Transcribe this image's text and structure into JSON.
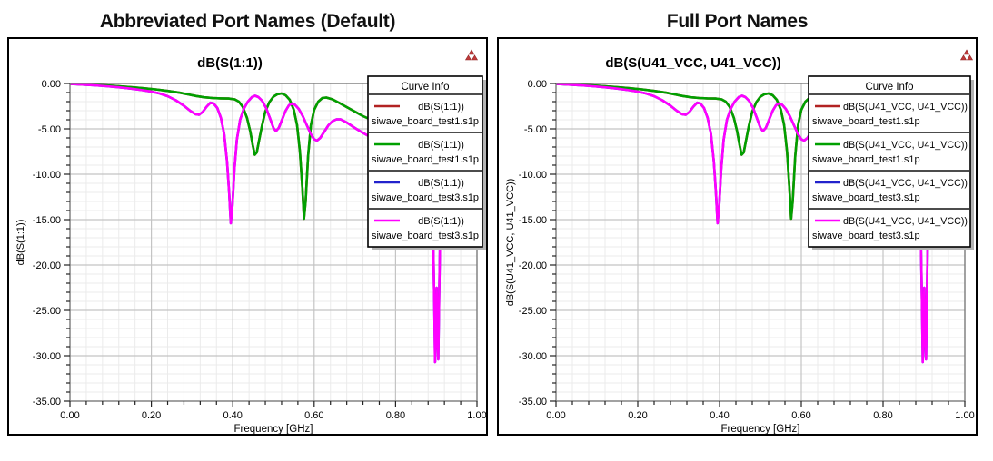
{
  "panels": [
    {
      "heading": "Abbreviated Port Names (Default)",
      "chart_title": "dB(S(1:1))",
      "ylabel": "dB(S(1:1))",
      "xlabel": "Frequency [GHz]",
      "corner_icon": "red-delta-marker-icon",
      "legend": {
        "header": "Curve Info",
        "entries": [
          {
            "color": "#b22222",
            "label": "dB(S(1:1))",
            "file": "siwave_board_test1.s1p"
          },
          {
            "color": "#00a000",
            "label": "dB(S(1:1))",
            "file": "siwave_board_test1.s1p"
          },
          {
            "color": "#2222cc",
            "label": "dB(S(1:1))",
            "file": "siwave_board_test3.s1p"
          },
          {
            "color": "#ff00ff",
            "label": "dB(S(1:1))",
            "file": "siwave_board_test3.s1p"
          }
        ]
      }
    },
    {
      "heading": "Full Port Names",
      "chart_title": "dB(S(U41_VCC, U41_VCC))",
      "ylabel": "dB(S(U41_VCC, U41_VCC))",
      "xlabel": "Frequency [GHz]",
      "corner_icon": "red-delta-marker-icon",
      "legend": {
        "header": "Curve Info",
        "entries": [
          {
            "color": "#b22222",
            "label": "dB(S(U41_VCC, U41_VCC))",
            "file": "siwave_board_test1.s1p"
          },
          {
            "color": "#00a000",
            "label": "dB(S(U41_VCC, U41_VCC))",
            "file": "siwave_board_test1.s1p"
          },
          {
            "color": "#2222cc",
            "label": "dB(S(U41_VCC, U41_VCC))",
            "file": "siwave_board_test3.s1p"
          },
          {
            "color": "#ff00ff",
            "label": "dB(S(U41_VCC, U41_VCC))",
            "file": "siwave_board_test3.s1p"
          }
        ]
      }
    }
  ],
  "chart_data": {
    "type": "line",
    "xlabel": "Frequency [GHz]",
    "xlim": [
      0,
      1
    ],
    "ylim": [
      -35,
      0
    ],
    "grid": "on",
    "legend_position": "top-right-overlay",
    "x_ticks": {
      "major": [
        0,
        0.2,
        0.4,
        0.6,
        0.8,
        1.0
      ],
      "labels": [
        "0.00",
        "0.20",
        "0.40",
        "0.60",
        "0.80",
        "1.00"
      ],
      "minor_step": 0.04
    },
    "y_ticks": {
      "major": [
        0,
        -5,
        -10,
        -15,
        -20,
        -25,
        -30,
        -35
      ],
      "labels": [
        "0.00",
        "-5.00",
        "-10.00",
        "-15.00",
        "-20.00",
        "-25.00",
        "-30.00",
        "-35.00"
      ],
      "minor_step": 1
    },
    "note": "Red curve coincides with green (test1); blue coincides with magenta (test3); they are hidden underneath.",
    "series": [
      {
        "name": "siwave_board_test1.s1p (red, hidden under green)",
        "color": "#b22222",
        "points_same_as": 1
      },
      {
        "name": "siwave_board_test1.s1p (green)",
        "color": "#00a000",
        "points": [
          [
            0,
            -0.05
          ],
          [
            0.03,
            -0.1
          ],
          [
            0.06,
            -0.15
          ],
          [
            0.09,
            -0.22
          ],
          [
            0.12,
            -0.3
          ],
          [
            0.15,
            -0.4
          ],
          [
            0.18,
            -0.52
          ],
          [
            0.21,
            -0.65
          ],
          [
            0.24,
            -0.82
          ],
          [
            0.27,
            -1.02
          ],
          [
            0.29,
            -1.2
          ],
          [
            0.31,
            -1.38
          ],
          [
            0.33,
            -1.52
          ],
          [
            0.35,
            -1.6
          ],
          [
            0.37,
            -1.64
          ],
          [
            0.39,
            -1.66
          ],
          [
            0.405,
            -1.75
          ],
          [
            0.415,
            -2.0
          ],
          [
            0.425,
            -2.6
          ],
          [
            0.435,
            -3.8
          ],
          [
            0.443,
            -5.3
          ],
          [
            0.449,
            -6.8
          ],
          [
            0.454,
            -7.85
          ],
          [
            0.459,
            -7.6
          ],
          [
            0.465,
            -6.2
          ],
          [
            0.472,
            -4.6
          ],
          [
            0.48,
            -3.1
          ],
          [
            0.49,
            -2.05
          ],
          [
            0.5,
            -1.45
          ],
          [
            0.51,
            -1.18
          ],
          [
            0.52,
            -1.1
          ],
          [
            0.53,
            -1.3
          ],
          [
            0.54,
            -1.8
          ],
          [
            0.55,
            -2.9
          ],
          [
            0.558,
            -4.6
          ],
          [
            0.565,
            -7.5
          ],
          [
            0.571,
            -11.5
          ],
          [
            0.575,
            -14.9
          ],
          [
            0.579,
            -13.0
          ],
          [
            0.585,
            -8.0
          ],
          [
            0.592,
            -4.6
          ],
          [
            0.6,
            -2.9
          ],
          [
            0.61,
            -2.0
          ],
          [
            0.62,
            -1.6
          ],
          [
            0.63,
            -1.55
          ],
          [
            0.645,
            -1.75
          ],
          [
            0.66,
            -2.1
          ],
          [
            0.68,
            -2.6
          ],
          [
            0.7,
            -3.1
          ],
          [
            0.72,
            -3.6
          ],
          [
            0.75,
            -4.2
          ],
          [
            0.8,
            -5.0
          ],
          [
            0.85,
            -5.6
          ],
          [
            0.9,
            -5.9
          ],
          [
            0.95,
            -6.1
          ],
          [
            1.0,
            -6.3
          ]
        ]
      },
      {
        "name": "siwave_board_test3.s1p (blue, hidden under magenta)",
        "color": "#2222cc",
        "points_same_as": 3
      },
      {
        "name": "siwave_board_test3.s1p (magenta)",
        "color": "#ff00ff",
        "points": [
          [
            0,
            -0.05
          ],
          [
            0.03,
            -0.12
          ],
          [
            0.06,
            -0.2
          ],
          [
            0.09,
            -0.3
          ],
          [
            0.12,
            -0.42
          ],
          [
            0.15,
            -0.57
          ],
          [
            0.18,
            -0.75
          ],
          [
            0.2,
            -0.9
          ],
          [
            0.22,
            -1.1
          ],
          [
            0.24,
            -1.4
          ],
          [
            0.26,
            -1.85
          ],
          [
            0.28,
            -2.45
          ],
          [
            0.295,
            -3.0
          ],
          [
            0.308,
            -3.38
          ],
          [
            0.317,
            -3.45
          ],
          [
            0.326,
            -3.15
          ],
          [
            0.336,
            -2.55
          ],
          [
            0.345,
            -2.12
          ],
          [
            0.353,
            -2.2
          ],
          [
            0.362,
            -2.7
          ],
          [
            0.371,
            -3.8
          ],
          [
            0.379,
            -5.6
          ],
          [
            0.386,
            -8.6
          ],
          [
            0.391,
            -12.0
          ],
          [
            0.395,
            -15.4
          ],
          [
            0.399,
            -13.5
          ],
          [
            0.404,
            -9.5
          ],
          [
            0.41,
            -6.2
          ],
          [
            0.418,
            -4.0
          ],
          [
            0.427,
            -2.8
          ],
          [
            0.437,
            -2.0
          ],
          [
            0.447,
            -1.5
          ],
          [
            0.455,
            -1.35
          ],
          [
            0.463,
            -1.5
          ],
          [
            0.472,
            -1.9
          ],
          [
            0.482,
            -2.7
          ],
          [
            0.492,
            -3.9
          ],
          [
            0.5,
            -4.9
          ],
          [
            0.506,
            -5.25
          ],
          [
            0.513,
            -4.9
          ],
          [
            0.521,
            -4.0
          ],
          [
            0.53,
            -3.0
          ],
          [
            0.538,
            -2.4
          ],
          [
            0.545,
            -2.2
          ],
          [
            0.553,
            -2.35
          ],
          [
            0.562,
            -2.8
          ],
          [
            0.572,
            -3.6
          ],
          [
            0.582,
            -4.6
          ],
          [
            0.592,
            -5.6
          ],
          [
            0.6,
            -6.15
          ],
          [
            0.607,
            -6.3
          ],
          [
            0.615,
            -6.0
          ],
          [
            0.625,
            -5.3
          ],
          [
            0.635,
            -4.6
          ],
          [
            0.645,
            -4.15
          ],
          [
            0.655,
            -3.95
          ],
          [
            0.665,
            -3.95
          ],
          [
            0.68,
            -4.3
          ],
          [
            0.7,
            -4.9
          ],
          [
            0.72,
            -5.45
          ],
          [
            0.75,
            -6.2
          ],
          [
            0.78,
            -6.9
          ],
          [
            0.81,
            -7.5
          ],
          [
            0.84,
            -7.9
          ],
          [
            0.865,
            -8.1
          ],
          [
            0.88,
            -8.8
          ],
          [
            0.888,
            -10.5
          ],
          [
            0.892,
            -16
          ],
          [
            0.895,
            -24
          ],
          [
            0.897,
            -30.7
          ],
          [
            0.899,
            -27
          ],
          [
            0.901,
            -22.5
          ],
          [
            0.903,
            -28
          ],
          [
            0.905,
            -30.4
          ],
          [
            0.907,
            -24
          ],
          [
            0.91,
            -15
          ],
          [
            0.915,
            -11
          ],
          [
            0.925,
            -9.5
          ],
          [
            0.95,
            -8.8
          ],
          [
            1.0,
            -9.0
          ]
        ]
      }
    ]
  },
  "colors": {
    "grid_minor": "#ebebeb",
    "grid_major": "#c4c4c4",
    "plot_border": "#7a7a7a",
    "frame_border": "#000000",
    "legend_border": "#000000",
    "legend_shadow": "#b4b4b4",
    "icon_red": "#c03a3a",
    "text": "#000000"
  }
}
